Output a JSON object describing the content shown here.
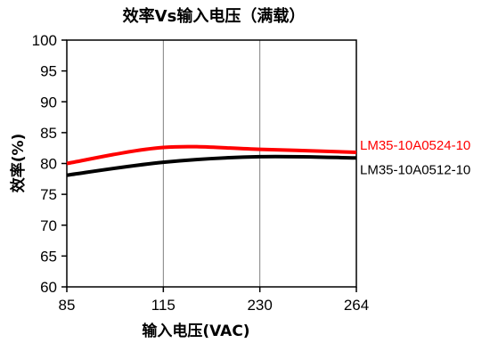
{
  "chart_data": {
    "type": "line",
    "title": "效率Vs输入电压（满载）",
    "xlabel": "输入电压(VAC)",
    "ylabel": "效率(%)",
    "categories": [
      "85",
      "115",
      "230",
      "264"
    ],
    "ylim": [
      60,
      100
    ],
    "yticks": [
      "60",
      "65",
      "70",
      "75",
      "80",
      "85",
      "90",
      "95",
      "100"
    ],
    "grid": {
      "x": true,
      "y": false
    },
    "series": [
      {
        "name": "LM35-10A0524-10",
        "color": "#ff0000",
        "values": [
          80.0,
          82.6,
          82.3,
          81.8
        ]
      },
      {
        "name": "LM35-10A0512-10",
        "color": "#000000",
        "values": [
          78.1,
          80.2,
          81.1,
          80.9
        ]
      }
    ],
    "legend_placement": "line-end labels, right"
  }
}
